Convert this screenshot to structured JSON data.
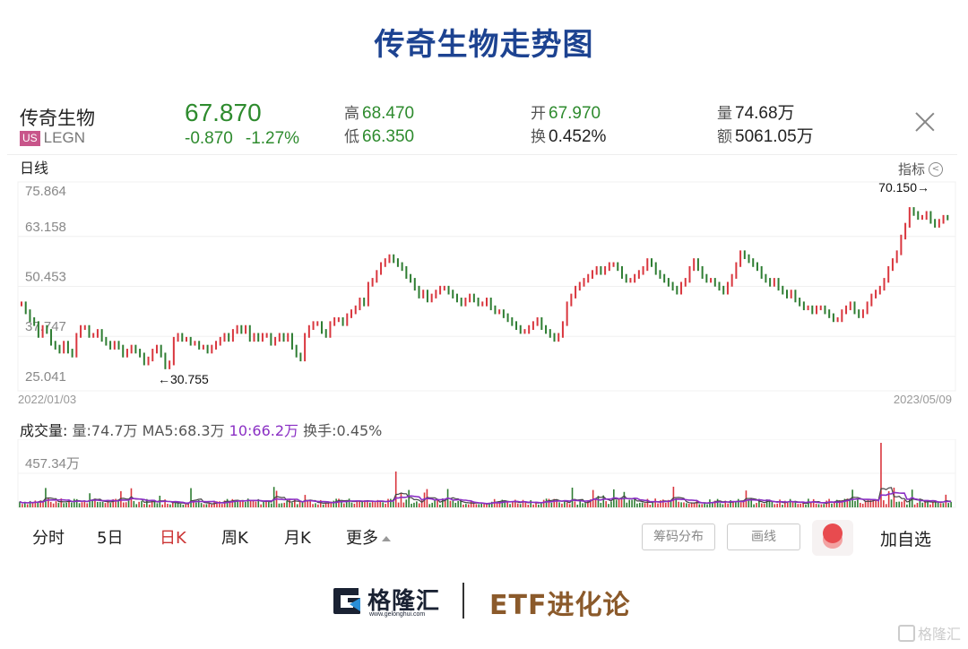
{
  "page_title": "传奇生物走势图",
  "quote": {
    "name": "传奇生物",
    "market_badge": "US",
    "ticker": "LEGN",
    "price": "67.870",
    "change": "-0.870",
    "change_pct": "-1.27%",
    "high_label": "高",
    "high": "68.470",
    "low_label": "低",
    "low": "66.350",
    "open_label": "开",
    "open": "67.970",
    "turnover_label": "换",
    "turnover": "0.452%",
    "volume_label": "量",
    "volume": "74.68万",
    "amount_label": "额",
    "amount": "5061.05万"
  },
  "chart_header": {
    "period_label": "日线",
    "indicator_label": "指标"
  },
  "volume_header": {
    "lead": "成交量:",
    "vol": "量:74.7万",
    "ma5": "MA5:68.3万",
    "ma10": "10:66.2万",
    "turnover": "换手:0.45%"
  },
  "tabs": [
    {
      "label": "分时",
      "active": false
    },
    {
      "label": "5日",
      "active": false
    },
    {
      "label": "日K",
      "active": true
    },
    {
      "label": "周K",
      "active": false
    },
    {
      "label": "月K",
      "active": false
    },
    {
      "label": "更多",
      "active": false
    }
  ],
  "buttons": {
    "chip_distribution": "筹码分布",
    "draw_line": "画线",
    "add_watchlist": "加自选"
  },
  "footer": {
    "brand_cn": "格隆汇",
    "brand_url": "www.gelonghui.com",
    "column": "ETF进化论",
    "watermark": "格隆汇"
  },
  "colors": {
    "up": "#d9363e",
    "down": "#2e7d32",
    "ma5": "#444444",
    "ma10": "#8a2fc4",
    "title": "#1d4391",
    "active_tab": "#cc3333"
  },
  "chart_data": [
    {
      "type": "candlestick",
      "title": "传奇生物 日线",
      "x_start": "2022/01/03",
      "x_end": "2023/05/09",
      "y_ticks": [
        "75.864",
        "63.158",
        "50.453",
        "37.747",
        "25.041"
      ],
      "ylim": [
        25.041,
        75.864
      ],
      "annotations": [
        {
          "label": "←30.755",
          "type": "low"
        },
        {
          "label": "70.150→",
          "type": "high"
        }
      ],
      "grid": true,
      "approx_close_path": [
        46,
        44,
        42,
        41,
        38,
        40,
        39,
        36,
        35,
        34,
        36,
        34,
        33,
        38,
        40,
        40,
        38,
        38,
        39,
        37,
        36,
        35,
        36,
        35,
        33,
        34,
        35,
        34,
        33,
        31,
        32,
        34,
        35,
        33,
        30,
        31,
        37,
        38,
        37,
        37,
        36,
        36,
        35,
        35,
        34,
        35,
        36,
        37,
        38,
        37,
        39,
        40,
        39,
        40,
        37,
        38,
        37,
        38,
        38,
        36,
        37,
        38,
        37,
        38,
        35,
        33,
        32,
        38,
        40,
        41,
        41,
        39,
        38,
        41,
        42,
        42,
        41,
        43,
        44,
        45,
        47,
        46,
        51,
        52,
        54,
        56,
        57,
        58,
        57,
        56,
        55,
        53,
        52,
        50,
        48,
        49,
        47,
        48,
        49,
        50,
        50,
        49,
        48,
        47,
        46,
        47,
        48,
        47,
        46,
        46,
        47,
        45,
        44,
        44,
        43,
        42,
        41,
        40,
        39,
        39,
        40,
        41,
        42,
        40,
        39,
        38,
        37,
        38,
        41,
        46,
        48,
        50,
        51,
        52,
        53,
        54,
        55,
        54,
        55,
        56,
        56,
        55,
        53,
        52,
        52,
        53,
        54,
        55,
        57,
        56,
        54,
        53,
        52,
        51,
        50,
        49,
        51,
        52,
        55,
        57,
        55,
        53,
        52,
        52,
        51,
        50,
        49,
        51,
        53,
        56,
        59,
        58,
        57,
        56,
        55,
        53,
        52,
        51,
        52,
        50,
        49,
        48,
        49,
        47,
        46,
        45,
        45,
        44,
        45,
        45,
        44,
        43,
        42,
        42,
        44,
        45,
        46,
        44,
        43,
        44,
        46,
        48,
        49,
        50,
        52,
        55,
        57,
        59,
        63,
        66,
        70,
        69,
        68,
        68,
        69,
        67,
        66,
        67,
        68,
        67.87
      ]
    },
    {
      "type": "bar",
      "title": "成交量",
      "y_tick": "457.34万",
      "series": [
        {
          "name": "量",
          "last": "74.7万"
        },
        {
          "name": "MA5",
          "last": "68.3万"
        },
        {
          "name": "MA10",
          "last": "66.2万"
        }
      ],
      "spikes_note": "peak volume ~457.34万 near 2023/03; secondary spikes mid-2022"
    }
  ]
}
